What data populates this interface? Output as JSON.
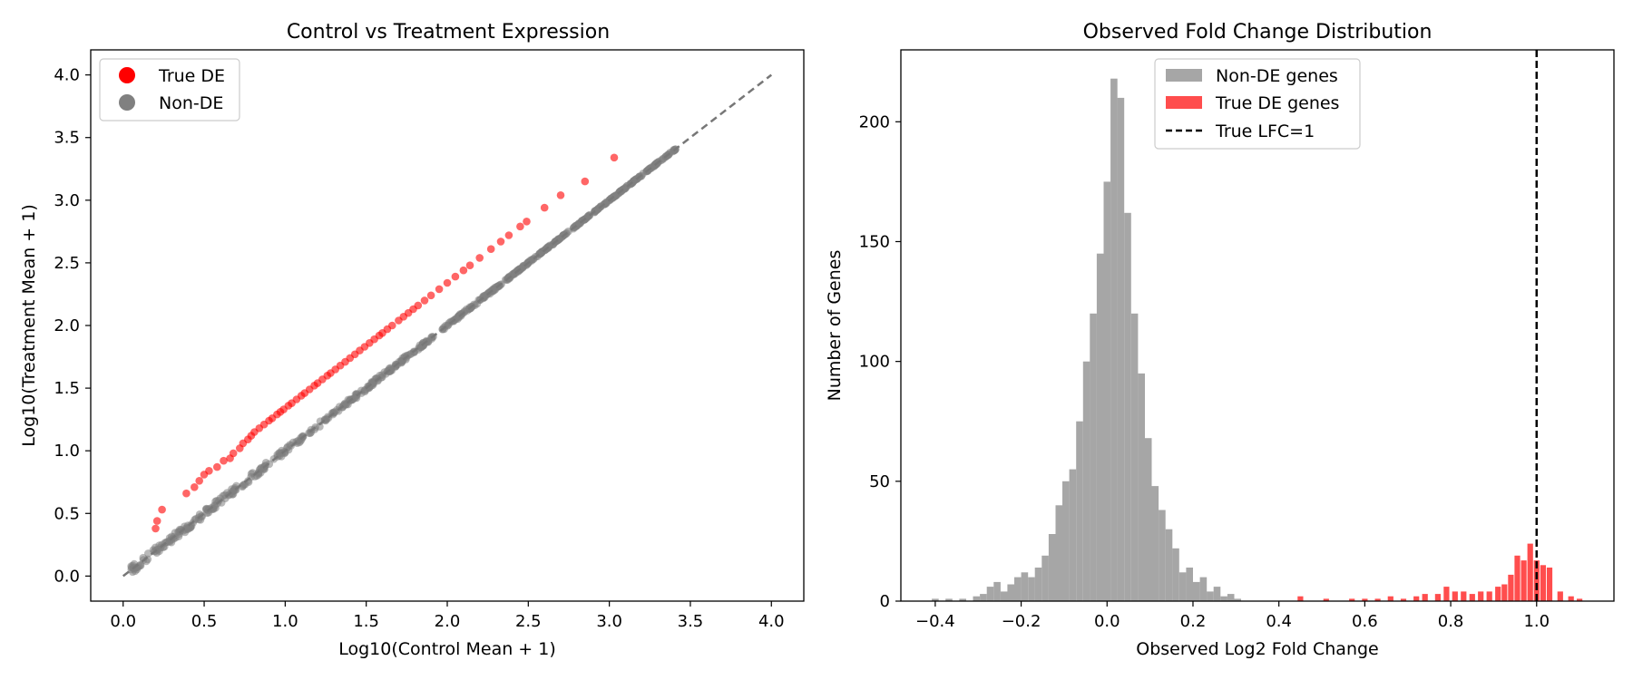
{
  "chart_data": [
    {
      "type": "scatter",
      "title": "Control vs Treatment Expression",
      "xlabel": "Log10(Control Mean + 1)",
      "ylabel": "Log10(Treatment Mean + 1)",
      "xlim": [
        -0.2,
        4.2
      ],
      "ylim": [
        -0.2,
        4.2
      ],
      "xticks": [
        "0.0",
        "0.5",
        "1.0",
        "1.5",
        "2.0",
        "2.5",
        "3.0",
        "3.5",
        "4.0"
      ],
      "yticks": [
        "0.0",
        "0.5",
        "1.0",
        "1.5",
        "2.0",
        "2.5",
        "3.0",
        "3.5",
        "4.0"
      ],
      "legend": {
        "placement": "upper-left",
        "entries": [
          "True DE",
          "Non-DE"
        ]
      },
      "reference_line": {
        "x": [
          0,
          4
        ],
        "y": [
          0,
          4
        ],
        "style": "dashed",
        "color": "#777777"
      },
      "series": [
        {
          "name": "True DE",
          "color": "#ff0000",
          "x": [
            0.2,
            0.21,
            0.24,
            0.39,
            0.44,
            0.47,
            0.5,
            0.53,
            0.58,
            0.62,
            0.66,
            0.68,
            0.72,
            0.74,
            0.77,
            0.79,
            0.81,
            0.84,
            0.87,
            0.9,
            0.92,
            0.95,
            0.97,
            0.99,
            1.02,
            1.04,
            1.07,
            1.1,
            1.12,
            1.15,
            1.18,
            1.2,
            1.23,
            1.26,
            1.28,
            1.31,
            1.34,
            1.37,
            1.4,
            1.43,
            1.46,
            1.49,
            1.52,
            1.55,
            1.58,
            1.6,
            1.63,
            1.66,
            1.7,
            1.73,
            1.76,
            1.79,
            1.82,
            1.86,
            1.9,
            1.95,
            2.0,
            2.05,
            2.1,
            2.14,
            2.2,
            2.27,
            2.33,
            2.38,
            2.45,
            2.49,
            2.6,
            2.7,
            2.85,
            3.03
          ],
          "y": [
            0.38,
            0.44,
            0.53,
            0.66,
            0.71,
            0.76,
            0.81,
            0.84,
            0.87,
            0.92,
            0.94,
            0.98,
            1.02,
            1.06,
            1.09,
            1.12,
            1.15,
            1.18,
            1.21,
            1.24,
            1.26,
            1.29,
            1.31,
            1.33,
            1.36,
            1.38,
            1.41,
            1.44,
            1.46,
            1.49,
            1.52,
            1.54,
            1.57,
            1.6,
            1.62,
            1.65,
            1.68,
            1.71,
            1.74,
            1.77,
            1.8,
            1.83,
            1.86,
            1.89,
            1.92,
            1.94,
            1.97,
            2.0,
            2.04,
            2.07,
            2.1,
            2.13,
            2.16,
            2.2,
            2.24,
            2.29,
            2.34,
            2.39,
            2.44,
            2.48,
            2.54,
            2.61,
            2.67,
            2.72,
            2.79,
            2.83,
            2.94,
            3.04,
            3.15,
            3.34
          ]
        },
        {
          "name": "Non-DE",
          "color": "#808080",
          "x_range": [
            0.05,
            3.42
          ],
          "relation": "y ≈ x"
        }
      ]
    },
    {
      "type": "bar",
      "title": "Observed Fold Change Distribution",
      "xlabel": "Observed Log2 Fold Change",
      "ylabel": "Number of Genes",
      "xlim": [
        -0.48,
        1.18
      ],
      "ylim": [
        0,
        230
      ],
      "xticks": [
        "−0.4",
        "−0.2",
        "0.0",
        "0.2",
        "0.4",
        "0.6",
        "0.8",
        "1.0"
      ],
      "yticks": [
        "0",
        "50",
        "100",
        "150",
        "200"
      ],
      "legend": {
        "placement": "upper-center",
        "entries": [
          "Non-DE genes",
          "True DE genes",
          "True LFC=1"
        ]
      },
      "bin_width": 0.016,
      "vline": {
        "x": 1.0,
        "label": "True LFC=1",
        "style": "dashed",
        "color": "#000000"
      },
      "series": [
        {
          "name": "Non-DE genes",
          "color": "#a6a6a6",
          "bin_start": -0.408,
          "counts": [
            1,
            0,
            1,
            0,
            1,
            0,
            2,
            3,
            6,
            8,
            4,
            7,
            10,
            12,
            10,
            14,
            19,
            28,
            40,
            50,
            55,
            75,
            100,
            120,
            145,
            175,
            218,
            210,
            162,
            120,
            95,
            68,
            48,
            38,
            30,
            22,
            12,
            14,
            8,
            10,
            4,
            6,
            2,
            3,
            1
          ]
        },
        {
          "name": "True DE genes",
          "color": "#ff4d4d",
          "bins": [
            [
              0.45,
              2
            ],
            [
              0.51,
              1
            ],
            [
              0.57,
              1
            ],
            [
              0.6,
              1
            ],
            [
              0.63,
              1
            ],
            [
              0.66,
              2
            ],
            [
              0.69,
              1
            ],
            [
              0.72,
              2
            ],
            [
              0.74,
              3
            ],
            [
              0.77,
              3
            ],
            [
              0.79,
              6
            ],
            [
              0.81,
              4
            ],
            [
              0.83,
              4
            ],
            [
              0.85,
              3
            ],
            [
              0.87,
              4
            ],
            [
              0.89,
              4
            ],
            [
              0.91,
              6
            ],
            [
              0.925,
              7
            ],
            [
              0.94,
              11
            ],
            [
              0.955,
              19
            ],
            [
              0.97,
              17
            ],
            [
              0.985,
              24
            ],
            [
              1.0,
              17
            ],
            [
              1.015,
              15
            ],
            [
              1.03,
              14
            ],
            [
              1.055,
              4
            ],
            [
              1.08,
              2
            ],
            [
              1.1,
              1
            ]
          ]
        }
      ]
    }
  ]
}
